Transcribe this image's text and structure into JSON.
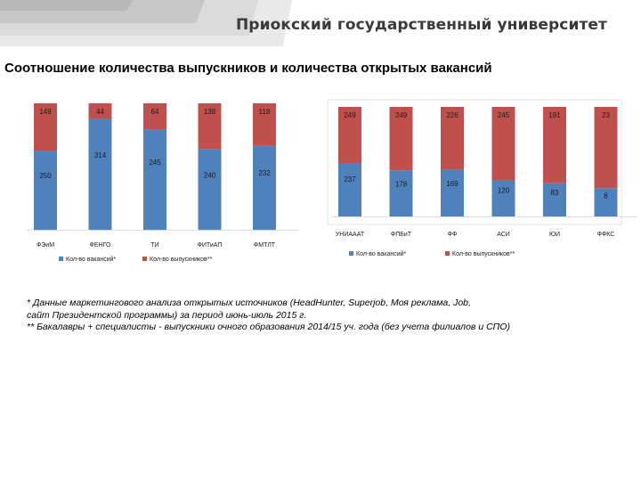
{
  "header": {
    "university": "Приокский государственный университет"
  },
  "title": "Соотношение количества выпускников и количества открытых вакансий",
  "colors": {
    "vacancies": "#4f81bd",
    "graduates": "#c0504d",
    "band_dark": "#c7c7c7",
    "band_light": "#e9e9e9"
  },
  "chart_data": [
    {
      "type": "bar",
      "stacked": true,
      "normalized": true,
      "categories": [
        "ФЭиМ",
        "ФЕНГО",
        "ТИ",
        "ФИТиАП",
        "ФМТЛТ"
      ],
      "series": [
        {
          "name": "Кол-во вакансий*",
          "values": [
            250,
            314,
            245,
            240,
            232
          ]
        },
        {
          "name": "Кол-во выпускников**",
          "values": [
            149,
            44,
            64,
            138,
            118
          ]
        }
      ],
      "legend": "bottom"
    },
    {
      "type": "bar",
      "stacked": true,
      "normalized": true,
      "categories": [
        "УНИАААТ",
        "ФПБиТ",
        "ФФ",
        "АСИ",
        "ЮИ",
        "ФФКС"
      ],
      "series": [
        {
          "name": "Кол-во вакансий*",
          "values": [
            237,
            178,
            169,
            120,
            83,
            8
          ]
        },
        {
          "name": "Кол-во выпускников**",
          "values": [
            249,
            249,
            226,
            245,
            191,
            23
          ]
        }
      ],
      "legend": "bottom"
    }
  ],
  "footnotes": [
    "* Данные маркетингового анализа открытых источников (HeadHunter, Superjob, Моя реклама, Job,",
    "сайт Президентской программы) за период июнь-июль 2015 г.",
    "** Бакалавры + специалисты - выпускники очного образования 2014/15 уч. года (без учета филиалов и СПО)"
  ]
}
